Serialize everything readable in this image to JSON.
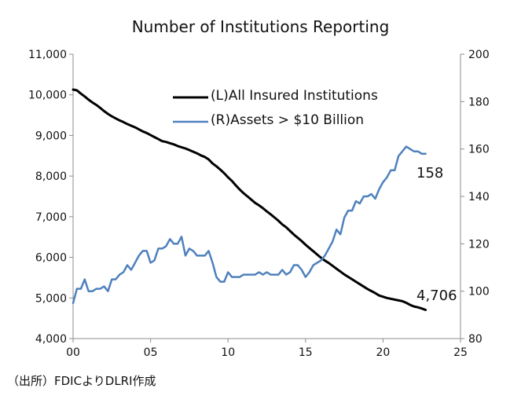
{
  "chart_data": {
    "type": "line",
    "title": "Number of Institutions Reporting",
    "x_ticks": [
      "00",
      "05",
      "10",
      "15",
      "20",
      "25"
    ],
    "x_tick_values": [
      2000,
      2005,
      2010,
      2015,
      2020,
      2025
    ],
    "xlim": [
      2000,
      2025
    ],
    "left_axis": {
      "ylim": [
        4000,
        11000
      ],
      "ticks": [
        "4,000",
        "5,000",
        "6,000",
        "7,000",
        "8,000",
        "9,000",
        "10,000",
        "11,000"
      ],
      "tick_values": [
        4000,
        5000,
        6000,
        7000,
        8000,
        9000,
        10000,
        11000
      ]
    },
    "right_axis": {
      "ylim": [
        80,
        200
      ],
      "ticks": [
        "80",
        "100",
        "120",
        "140",
        "160",
        "180",
        "200"
      ],
      "tick_values": [
        80,
        100,
        120,
        140,
        160,
        180,
        200
      ]
    },
    "grid": false,
    "legend_position": "top-center",
    "series": [
      {
        "name": "(L)All Insured Institutions",
        "axis": "left",
        "color": "#000000",
        "x": [
          2000.0,
          2000.25,
          2000.5,
          2000.75,
          2001.0,
          2001.25,
          2001.5,
          2001.75,
          2002.0,
          2002.25,
          2002.5,
          2002.75,
          2003.0,
          2003.25,
          2003.5,
          2003.75,
          2004.0,
          2004.25,
          2004.5,
          2004.75,
          2005.0,
          2005.25,
          2005.5,
          2005.75,
          2006.0,
          2006.25,
          2006.5,
          2006.75,
          2007.0,
          2007.25,
          2007.5,
          2007.75,
          2008.0,
          2008.25,
          2008.5,
          2008.75,
          2009.0,
          2009.25,
          2009.5,
          2009.75,
          2010.0,
          2010.25,
          2010.5,
          2010.75,
          2011.0,
          2011.25,
          2011.5,
          2011.75,
          2012.0,
          2012.25,
          2012.5,
          2012.75,
          2013.0,
          2013.25,
          2013.5,
          2013.75,
          2014.0,
          2014.25,
          2014.5,
          2014.75,
          2015.0,
          2015.25,
          2015.5,
          2015.75,
          2016.0,
          2016.25,
          2016.5,
          2016.75,
          2017.0,
          2017.25,
          2017.5,
          2017.75,
          2018.0,
          2018.25,
          2018.5,
          2018.75,
          2019.0,
          2019.25,
          2019.5,
          2019.75,
          2020.0,
          2020.25,
          2020.5,
          2020.75,
          2021.0,
          2021.25,
          2021.5,
          2021.75,
          2022.0,
          2022.25,
          2022.5,
          2022.75
        ],
        "values": [
          10130,
          10110,
          10030,
          9960,
          9880,
          9810,
          9750,
          9680,
          9600,
          9530,
          9470,
          9420,
          9370,
          9330,
          9280,
          9240,
          9200,
          9150,
          9100,
          9060,
          9010,
          8960,
          8910,
          8860,
          8840,
          8810,
          8780,
          8740,
          8710,
          8680,
          8640,
          8600,
          8560,
          8510,
          8470,
          8410,
          8310,
          8240,
          8160,
          8070,
          7970,
          7880,
          7770,
          7670,
          7580,
          7500,
          7420,
          7340,
          7280,
          7210,
          7130,
          7060,
          6980,
          6900,
          6810,
          6740,
          6650,
          6560,
          6480,
          6400,
          6310,
          6230,
          6150,
          6070,
          5990,
          5920,
          5860,
          5790,
          5720,
          5650,
          5580,
          5520,
          5460,
          5400,
          5340,
          5280,
          5220,
          5170,
          5120,
          5060,
          5030,
          5000,
          4980,
          4960,
          4940,
          4920,
          4880,
          4830,
          4790,
          4770,
          4740,
          4706
        ]
      },
      {
        "name": "(R)Assets > $10 Billion",
        "axis": "right",
        "color": "#4f81bd",
        "x": [
          2000.0,
          2000.25,
          2000.5,
          2000.75,
          2001.0,
          2001.25,
          2001.5,
          2001.75,
          2002.0,
          2002.25,
          2002.5,
          2002.75,
          2003.0,
          2003.25,
          2003.5,
          2003.75,
          2004.0,
          2004.25,
          2004.5,
          2004.75,
          2005.0,
          2005.25,
          2005.5,
          2005.75,
          2006.0,
          2006.25,
          2006.5,
          2006.75,
          2007.0,
          2007.25,
          2007.5,
          2007.75,
          2008.0,
          2008.25,
          2008.5,
          2008.75,
          2009.0,
          2009.25,
          2009.5,
          2009.75,
          2010.0,
          2010.25,
          2010.5,
          2010.75,
          2011.0,
          2011.25,
          2011.5,
          2011.75,
          2012.0,
          2012.25,
          2012.5,
          2012.75,
          2013.0,
          2013.25,
          2013.5,
          2013.75,
          2014.0,
          2014.25,
          2014.5,
          2014.75,
          2015.0,
          2015.25,
          2015.5,
          2015.75,
          2016.0,
          2016.25,
          2016.5,
          2016.75,
          2017.0,
          2017.25,
          2017.5,
          2017.75,
          2018.0,
          2018.25,
          2018.5,
          2018.75,
          2019.0,
          2019.25,
          2019.5,
          2019.75,
          2020.0,
          2020.25,
          2020.5,
          2020.75,
          2021.0,
          2021.25,
          2021.5,
          2021.75,
          2022.0,
          2022.25,
          2022.5,
          2022.75
        ],
        "values": [
          95,
          101,
          101,
          105,
          100,
          100,
          101,
          101,
          102,
          100,
          105,
          105,
          107,
          108,
          111,
          109,
          112,
          115,
          117,
          117,
          112,
          113,
          118,
          118,
          119,
          122,
          120,
          120,
          123,
          115,
          118,
          117,
          115,
          115,
          115,
          117,
          112,
          106,
          104,
          104,
          108,
          106,
          106,
          106,
          107,
          107,
          107,
          107,
          108,
          107,
          108,
          107,
          107,
          107,
          109,
          107,
          108,
          111,
          111,
          109,
          106,
          108,
          111,
          112,
          113,
          115,
          118,
          121,
          126,
          124,
          131,
          134,
          134,
          138,
          137,
          140,
          140,
          141,
          139,
          143,
          146,
          148,
          151,
          151,
          157,
          159,
          161,
          160,
          159,
          159,
          158,
          158
        ]
      }
    ],
    "annotations": [
      {
        "text": "158",
        "series": "(R)Assets > $10 Billion"
      },
      {
        "text": "4,706",
        "series": "(L)All Insured Institutions"
      }
    ],
    "source_note": "（出所）FDICよりDLRI作成"
  }
}
